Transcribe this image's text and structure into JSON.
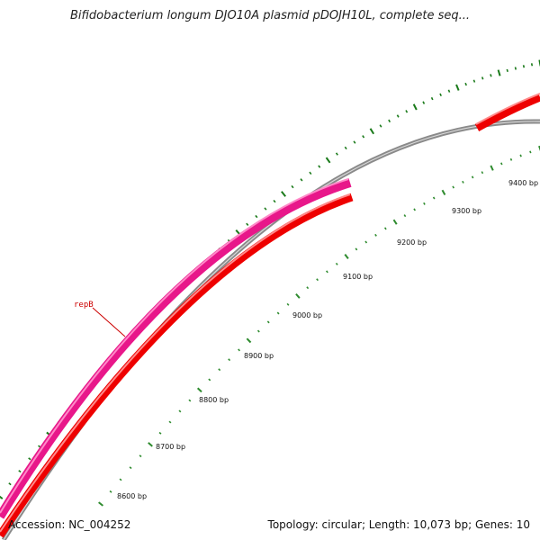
{
  "title": "Bifidobacterium longum DJO10A plasmid pDOJH10L, complete seq...",
  "accession": "Accession: NC_004252",
  "summary": "Topology: circular; Length: 10,073 bp; Genes: 10",
  "colors": {
    "backbone": "#8a8a8a",
    "gene_forward": "#e8178a",
    "gene_other": "#ee0000",
    "tick_major": "#1a7a1a",
    "tick_minor": "#2e8b2e",
    "label": "#cc0000"
  },
  "genes": [
    {
      "name": "repB",
      "label_visible": true
    }
  ],
  "tick_labels": [
    "8600 bp",
    "8700 bp",
    "8800 bp",
    "8900 bp",
    "9000 bp",
    "9100 bp",
    "9200 bp",
    "9300 bp",
    "9400 bp"
  ]
}
